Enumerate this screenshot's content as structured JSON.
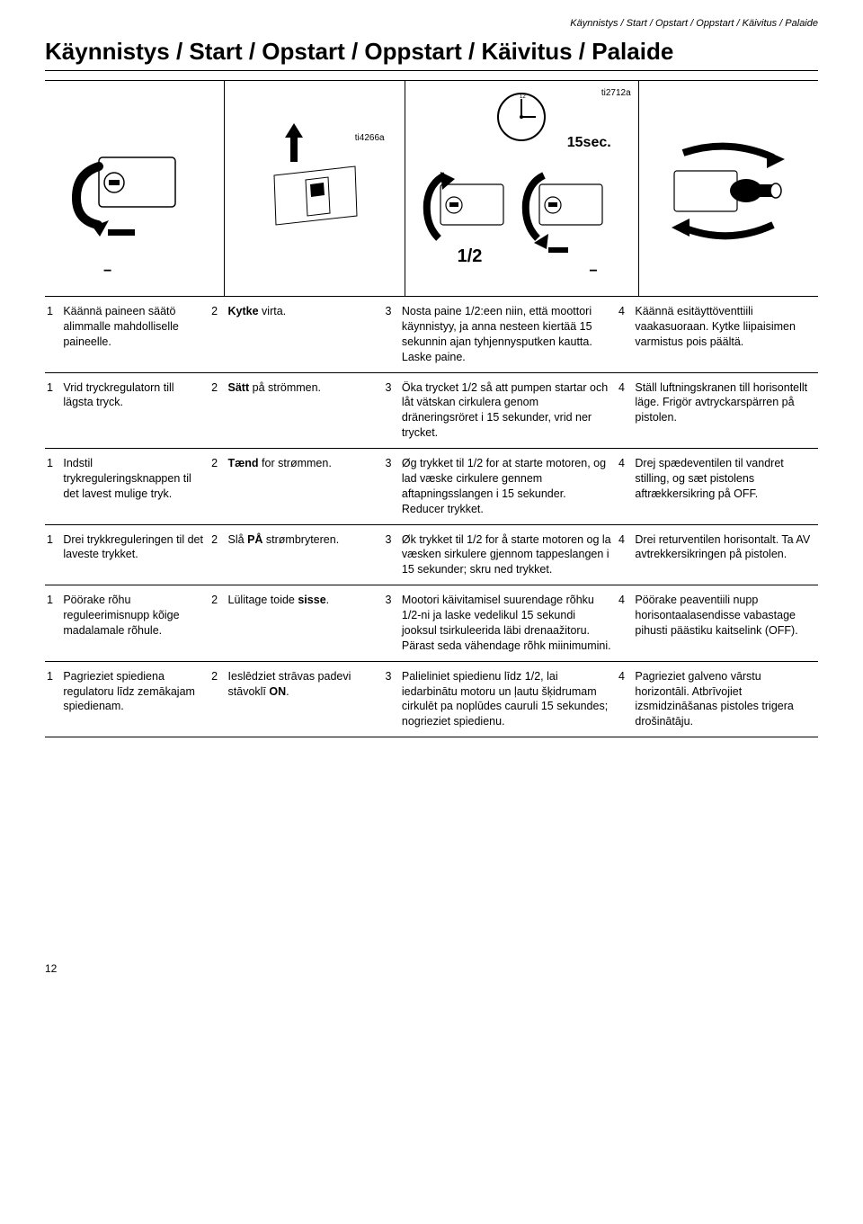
{
  "running_head": "Käynnistys / Start / Opstart / Oppstart / Käivitus / Palaide",
  "title": "Käynnistys / Start / Opstart / Oppstart / Käivitus / Palaide",
  "figure": {
    "tag_left": "ti4266a",
    "tag_right": "ti2712a",
    "time_label": "15sec.",
    "fraction_label": "1/2",
    "minus_label_left": "−",
    "minus_label_right": "−"
  },
  "rows": [
    {
      "c1": {
        "n": "1",
        "text": "Käännä paineen säätö alimmalle mahdolliselle paineelle."
      },
      "c2": {
        "n": "2",
        "text_pre": "Kytke",
        "text_bold": "",
        "text_post": " virta."
      },
      "c3": {
        "n": "3",
        "text": "Nosta paine 1/2:een niin, että moottori käynnistyy, ja anna nesteen kiertää 15 sekunnin ajan tyhjennysputken kautta. Laske paine."
      },
      "c4": {
        "n": "4",
        "text": "Käännä esitäyttöventtiili vaakasuoraan. Kytke liipaisimen varmistus pois päältä."
      }
    },
    {
      "c1": {
        "n": "1",
        "text": "Vrid tryckregulatorn till lägsta tryck."
      },
      "c2": {
        "n": "2",
        "text_pre": "",
        "text_bold": "Sätt",
        "text_post": " på strömmen."
      },
      "c3": {
        "n": "3",
        "text": "Öka trycket 1/2 så att pumpen startar och låt vätskan cirkulera genom dräneringsröret i 15 sekunder, vrid ner trycket."
      },
      "c4": {
        "n": "4",
        "text": "Ställ luftningskranen till horisontellt läge. Frigör avtryckarspärren på pistolen."
      }
    },
    {
      "c1": {
        "n": "1",
        "text": "Indstil trykreguleringsknappen til det lavest mulige tryk."
      },
      "c2": {
        "n": "2",
        "text_pre": "",
        "text_bold": "Tænd",
        "text_post": " for strømmen."
      },
      "c3": {
        "n": "3",
        "text": "Øg trykket til 1/2 for at starte motoren, og lad væske cirkulere gennem aftapningsslangen i 15 sekunder. Reducer trykket."
      },
      "c4": {
        "n": "4",
        "text": "Drej spædeventilen til vandret stilling, og sæt pistolens aftrækkersikring på OFF."
      }
    },
    {
      "c1": {
        "n": "1",
        "text": "Drei trykkreguleringen til det laveste trykket."
      },
      "c2": {
        "n": "2",
        "text_pre": "Slå ",
        "text_bold": "PÅ",
        "text_post": " strømbryteren."
      },
      "c3": {
        "n": "3",
        "text": "Øk trykket til 1/2 for å starte motoren og la væsken sirkulere gjennom tappeslangen i 15 sekunder; skru ned trykket."
      },
      "c4": {
        "n": "4",
        "text": "Drei returventilen horisontalt. Ta AV avtrekkersikringen på pistolen."
      }
    },
    {
      "c1": {
        "n": "1",
        "text": "Pöörake rõhu reguleerimisnupp kõige madalamale rõhule."
      },
      "c2": {
        "n": "2",
        "text_pre": "Lülitage toide ",
        "text_bold": "sisse",
        "text_post": "."
      },
      "c3": {
        "n": "3",
        "text": "Mootori käivitamisel suurendage rõhku 1/2-ni ja laske vedelikul 15 sekundi jooksul tsirkuleerida läbi drenaažitoru. Pärast seda vähendage rõhk miinimumini."
      },
      "c4": {
        "n": "4",
        "text": "Pöörake peaventiili nupp horisontaalasendisse vabastage pihusti päästiku kaitselink (OFF)."
      }
    },
    {
      "c1": {
        "n": "1",
        "text": "Pagrieziet spiediena regulatoru līdz zemākajam spiedienam."
      },
      "c2": {
        "n": "2",
        "text_pre": "Ieslēdziet strāvas padevi stāvoklī ",
        "text_bold": "ON",
        "text_post": "."
      },
      "c3": {
        "n": "3",
        "text": "Palieliniet spiedienu līdz 1/2, lai iedarbinātu motoru un ļautu šķidrumam cirkulēt pa noplūdes cauruli 15 sekundes; nogrieziet spiedienu."
      },
      "c4": {
        "n": "4",
        "text": "Pagrieziet galveno vārstu horizontāli. Atbrīvojiet izsmidzināšanas pistoles trigera drošinātāju."
      }
    }
  ],
  "page_number": "12"
}
